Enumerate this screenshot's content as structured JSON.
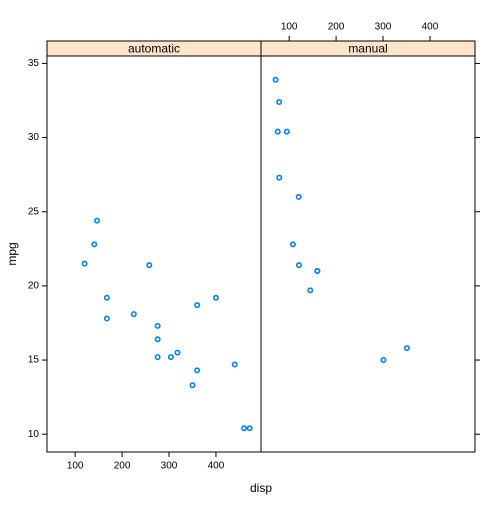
{
  "chart_data": {
    "type": "scatter",
    "xlabel": "disp",
    "ylabel": "mpg",
    "xlim": [
      40,
      496
    ],
    "ylim": [
      8.8,
      35.5
    ],
    "xticks": [
      100,
      200,
      300,
      400
    ],
    "yticks": [
      10,
      15,
      20,
      25,
      30,
      35
    ],
    "series": [
      {
        "name": "automatic",
        "color": "#0080ff",
        "x": [
          258,
          360,
          225,
          360,
          146.7,
          140.8,
          167.6,
          167.6,
          275.8,
          275.8,
          275.8,
          472,
          460,
          440,
          120.1,
          318,
          304,
          350,
          400
        ],
        "values": [
          21.4,
          18.7,
          18.1,
          14.3,
          24.4,
          22.8,
          19.2,
          17.8,
          16.4,
          17.3,
          15.2,
          10.4,
          10.4,
          14.7,
          21.5,
          15.5,
          15.2,
          13.3,
          19.2
        ]
      },
      {
        "name": "manual",
        "color": "#0080ff",
        "x": [
          160,
          160,
          108,
          78.7,
          75.7,
          71.1,
          79,
          120.3,
          95.1,
          351,
          145,
          301,
          121
        ],
        "values": [
          21,
          21,
          22.8,
          32.4,
          30.4,
          33.9,
          27.3,
          26,
          30.4,
          15.8,
          19.7,
          15,
          21.4
        ]
      }
    ]
  }
}
